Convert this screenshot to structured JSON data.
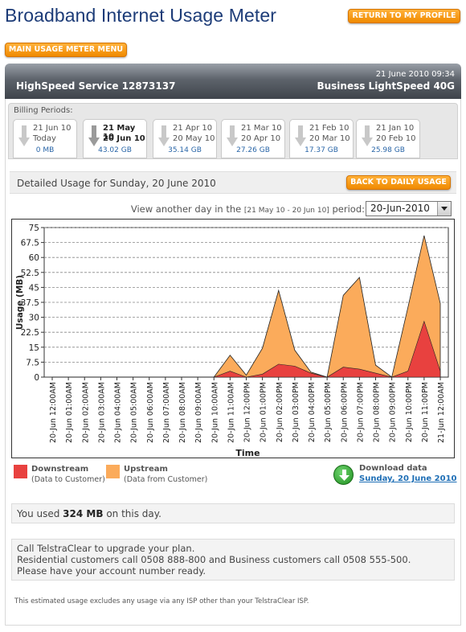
{
  "header": {
    "title": "Broadband Internet Usage Meter",
    "profile_button": "RETURN TO MY PROFILE",
    "menu_button": "MAIN USAGE METER MENU"
  },
  "banner": {
    "datetime": "21 June 2010 09:34",
    "service": "HighSpeed Service 12873137",
    "plan": "Business LightSpeed 40G"
  },
  "billing": {
    "label": "Billing Periods:",
    "tabs": [
      {
        "line1": "21 Jun 10",
        "line2": "Today",
        "size": "0 MB",
        "active": false
      },
      {
        "line1": "21 May 10",
        "line2": "20 Jun 10",
        "size": "43.02 GB",
        "active": true
      },
      {
        "line1": "21 Apr 10",
        "line2": "20 May 10",
        "size": "35.14 GB",
        "active": false
      },
      {
        "line1": "21 Mar 10",
        "line2": "20 Apr 10",
        "size": "27.26 GB",
        "active": false
      },
      {
        "line1": "21 Feb 10",
        "line2": "20 Mar 10",
        "size": "17.37 GB",
        "active": false
      },
      {
        "line1": "21 Jan 10",
        "line2": "20 Feb 10",
        "size": "25.98 GB",
        "active": false
      }
    ]
  },
  "detail": {
    "title": "Detailed Usage for Sunday, 20 June 2010",
    "daily_button": "BACK TO DAILY USAGE",
    "period_prefix": "View another day in the",
    "period_range": "[21 May 10 - 20 Jun 10]",
    "period_suffix": "period:",
    "selected_date": "20-Jun-2010"
  },
  "chart_data": {
    "type": "area",
    "xlabel": "Time",
    "ylabel": "Usage (MB)",
    "ylim": [
      0,
      75
    ],
    "yticks": [
      "0",
      "7.5",
      "15",
      "22.5",
      "30",
      "37.5",
      "45",
      "52.5",
      "60",
      "67.5",
      "75"
    ],
    "grid": true,
    "stacked": true,
    "categories": [
      "20-Jun 12:00AM",
      "20-Jun 01:00AM",
      "20-Jun 02:00AM",
      "20-Jun 03:00AM",
      "20-Jun 04:00AM",
      "20-Jun 05:00AM",
      "20-Jun 06:00AM",
      "20-Jun 07:00AM",
      "20-Jun 08:00AM",
      "20-Jun 09:00AM",
      "20-Jun 10:00AM",
      "20-Jun 11:00AM",
      "20-Jun 12:00PM",
      "20-Jun 01:00PM",
      "20-Jun 02:00PM",
      "20-Jun 03:00PM",
      "20-Jun 04:00PM",
      "20-Jun 05:00PM",
      "20-Jun 06:00PM",
      "20-Jun 07:00PM",
      "20-Jun 08:00PM",
      "20-Jun 09:00PM",
      "20-Jun 10:00PM",
      "20-Jun 11:00PM",
      "21-Jun 12:00AM"
    ],
    "series": [
      {
        "name": "Downstream",
        "color": "#e8413f",
        "values": [
          0,
          0,
          0,
          0,
          0,
          0,
          0,
          0,
          0,
          0,
          0,
          3,
          0,
          1.5,
          6.5,
          5.5,
          2,
          0,
          5,
          4,
          2,
          0,
          3,
          28,
          3
        ]
      },
      {
        "name": "Upstream",
        "color": "#fbab5b",
        "values": [
          0,
          0,
          0,
          0,
          0,
          0,
          0,
          0,
          0,
          0,
          0,
          8,
          1,
          13,
          37,
          8,
          0.5,
          0,
          36,
          46,
          4,
          0,
          32,
          43,
          34
        ]
      }
    ]
  },
  "legend": {
    "downstream_name": "Downstream",
    "downstream_desc": "(Data to Customer)",
    "upstream_name": "Upstream",
    "upstream_desc": "(Data from Customer)",
    "download_label": "Download data",
    "download_link": "Sunday, 20 June 2010"
  },
  "usage": {
    "prefix": "You used ",
    "amount": "324 MB",
    "suffix": " on this day."
  },
  "info": {
    "line1": "Call TelstraClear to upgrade your plan.",
    "line2": "Residential customers call 0508 888-800 and Business customers call 0508 555-500.",
    "line3": "Please have your account number ready."
  },
  "footnote": "This estimated usage excludes any usage via any ISP other than your TelstraClear ISP."
}
